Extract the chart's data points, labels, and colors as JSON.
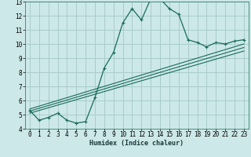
{
  "xlabel": "Humidex (Indice chaleur)",
  "bg_color": "#cce8e8",
  "grid_color": "#aacccc",
  "line_color": "#1a6b5a",
  "xlim": [
    -0.5,
    23.5
  ],
  "ylim": [
    4,
    13
  ],
  "xticks": [
    0,
    1,
    2,
    3,
    4,
    5,
    6,
    7,
    8,
    9,
    10,
    11,
    12,
    13,
    14,
    15,
    16,
    17,
    18,
    19,
    20,
    21,
    22,
    23
  ],
  "yticks": [
    4,
    5,
    6,
    7,
    8,
    9,
    10,
    11,
    12,
    13
  ],
  "main_x": [
    0,
    1,
    2,
    3,
    4,
    5,
    6,
    7,
    8,
    9,
    10,
    11,
    12,
    13,
    14,
    15,
    16,
    17,
    18,
    19,
    20,
    21,
    22,
    23
  ],
  "main_y": [
    5.3,
    4.6,
    4.8,
    5.1,
    4.6,
    4.4,
    4.5,
    6.2,
    8.3,
    9.4,
    11.5,
    12.5,
    11.7,
    13.2,
    13.2,
    12.5,
    12.1,
    10.3,
    10.1,
    9.8,
    10.1,
    10.0,
    10.2,
    10.3
  ],
  "line1_x": [
    0,
    23
  ],
  "line1_y": [
    5.1,
    9.5
  ],
  "line2_x": [
    0,
    23
  ],
  "line2_y": [
    5.25,
    9.75
  ],
  "line3_x": [
    0,
    23
  ],
  "line3_y": [
    5.4,
    10.0
  ]
}
